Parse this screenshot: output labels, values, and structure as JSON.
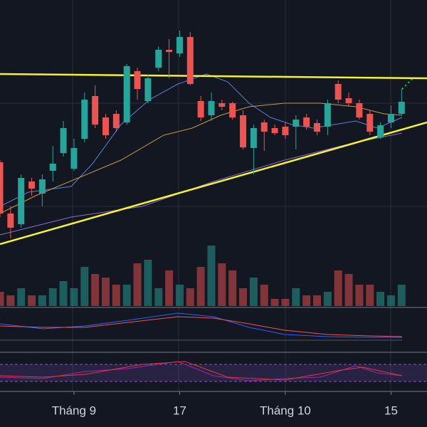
{
  "chart_data": {
    "type": "candlestick",
    "categories": [
      null,
      null,
      null,
      null,
      null,
      null,
      null,
      "Tháng 9",
      null,
      null,
      null,
      null,
      null,
      null,
      null,
      null,
      null,
      "17",
      null,
      null,
      null,
      null,
      null,
      null,
      null,
      null,
      null,
      "Tháng 10",
      null,
      null,
      null,
      null,
      null,
      null,
      null,
      null,
      null,
      "15",
      null
    ],
    "open": [
      372,
      300,
      285,
      345,
      328,
      360,
      385,
      363,
      405,
      465,
      435,
      440,
      428,
      500,
      458,
      505,
      530,
      525,
      548,
      458,
      438,
      455,
      455,
      438,
      392,
      428,
      420,
      422,
      422,
      435,
      427,
      422,
      482,
      462,
      455,
      440,
      407,
      428,
      440
    ],
    "high": [
      375,
      310,
      355,
      350,
      355,
      395,
      430,
      405,
      470,
      480,
      440,
      445,
      510,
      505,
      495,
      535,
      545,
      557,
      555,
      465,
      470,
      460,
      457,
      445,
      425,
      432,
      425,
      428,
      438,
      440,
      432,
      460,
      487,
      470,
      460,
      445,
      428,
      452,
      475
    ],
    "low": [
      295,
      265,
      280,
      325,
      310,
      345,
      380,
      360,
      400,
      420,
      405,
      415,
      425,
      460,
      455,
      500,
      490,
      520,
      480,
      430,
      430,
      445,
      432,
      390,
      355,
      388,
      410,
      405,
      390,
      418,
      410,
      410,
      455,
      450,
      432,
      410,
      405,
      420,
      438
    ],
    "close": [
      300,
      280,
      350,
      335,
      348,
      370,
      420,
      392,
      460,
      425,
      410,
      420,
      507,
      475,
      490,
      530,
      527,
      548,
      482,
      435,
      458,
      450,
      435,
      393,
      420,
      415,
      413,
      410,
      432,
      422,
      415,
      455,
      460,
      455,
      435,
      415,
      424,
      440,
      457
    ],
    "volume": [
      20,
      15,
      25,
      15,
      15,
      25,
      35,
      25,
      55,
      45,
      40,
      30,
      30,
      60,
      65,
      25,
      50,
      30,
      25,
      55,
      85,
      60,
      50,
      25,
      40,
      30,
      10,
      10,
      25,
      15,
      15,
      20,
      50,
      45,
      30,
      30,
      20,
      15,
      30
    ],
    "ylim": [
      170,
      600
    ],
    "volume_ylim": [
      0,
      100
    ],
    "up_color": "#26a69a",
    "down_color": "#ef5350"
  }
}
